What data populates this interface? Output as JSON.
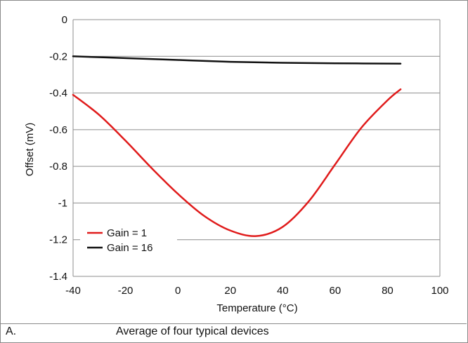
{
  "chart_data": {
    "type": "line",
    "xlabel": "Temperature (°C)",
    "ylabel": "Offset (mV)",
    "xlim": [
      -40,
      100
    ],
    "ylim": [
      -1.4,
      0
    ],
    "x_ticks": [
      -40,
      -20,
      0,
      20,
      40,
      60,
      80,
      100
    ],
    "x_tick_labels": [
      "-40",
      "-20",
      "0",
      "20",
      "40",
      "60",
      "80",
      "100"
    ],
    "y_ticks": [
      0,
      -0.2,
      -0.4,
      -0.6,
      -0.8,
      -1,
      -1.2,
      -1.4
    ],
    "y_tick_labels": [
      "0",
      "-0.2",
      "-0.4",
      "-0.6",
      "-0.8",
      "-1",
      "-1.2",
      "-1.4"
    ],
    "grid": "horizontal",
    "legend_position": "bottom-left",
    "series": [
      {
        "name": "Gain = 1",
        "color": "#e01b1b",
        "x": [
          -40,
          -30,
          -20,
          -10,
          0,
          10,
          20,
          30,
          40,
          50,
          60,
          70,
          80,
          85
        ],
        "y": [
          -0.41,
          -0.52,
          -0.66,
          -0.81,
          -0.95,
          -1.07,
          -1.15,
          -1.18,
          -1.13,
          -0.99,
          -0.79,
          -0.59,
          -0.44,
          -0.38
        ]
      },
      {
        "name": "Gain = 16",
        "color": "#111111",
        "x": [
          -40,
          -20,
          0,
          20,
          40,
          60,
          85
        ],
        "y": [
          -0.2,
          -0.21,
          -0.22,
          -0.23,
          -0.235,
          -0.238,
          -0.24
        ]
      }
    ]
  },
  "caption": {
    "tag": "A.",
    "text": "Average of four typical devices"
  }
}
